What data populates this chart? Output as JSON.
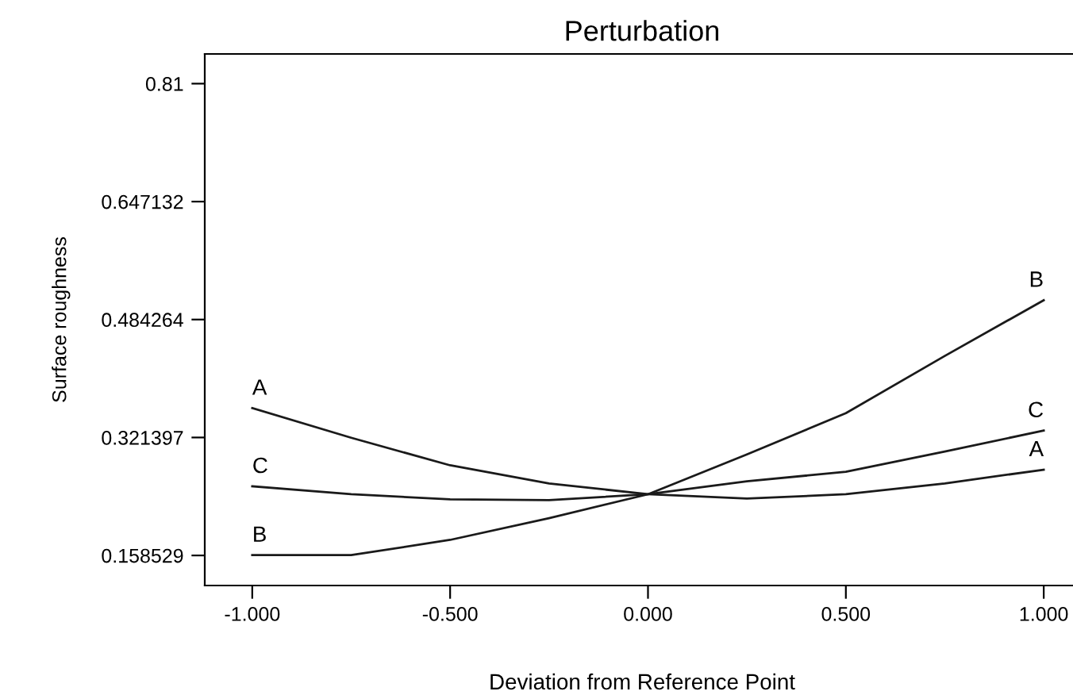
{
  "chart_data": {
    "type": "line",
    "title": "Perturbation",
    "xlabel": "Deviation from Reference Point",
    "ylabel": "Surface roughness",
    "x": [
      -1,
      -0.75,
      -0.5,
      -0.25,
      0,
      0.25,
      0.5,
      0.75,
      1
    ],
    "series": [
      {
        "name": "A",
        "color": "#1a1a1a",
        "values": [
          0.362,
          0.321,
          0.283,
          0.258,
          0.243,
          0.237,
          0.243,
          0.258,
          0.277
        ]
      },
      {
        "name": "B",
        "color": "#1a1a1a",
        "values": [
          0.159,
          0.159,
          0.18,
          0.21,
          0.243,
          0.298,
          0.355,
          0.434,
          0.511
        ]
      },
      {
        "name": "C",
        "color": "#1a1a1a",
        "values": [
          0.254,
          0.243,
          0.236,
          0.235,
          0.243,
          0.261,
          0.274,
          0.302,
          0.331
        ]
      }
    ],
    "xlim": [
      -1.12,
      1.09
    ],
    "ylim": [
      0.117,
      0.851
    ],
    "xticks": [
      {
        "value": -1,
        "label": "-1.000"
      },
      {
        "value": -0.5,
        "label": "-0.500"
      },
      {
        "value": 0,
        "label": "0.000"
      },
      {
        "value": 0.5,
        "label": "0.500"
      },
      {
        "value": 1,
        "label": "1.000"
      }
    ],
    "yticks": [
      0.158529,
      0.321397,
      0.484264,
      0.647132,
      0.81
    ],
    "grid": false,
    "legend": false
  }
}
